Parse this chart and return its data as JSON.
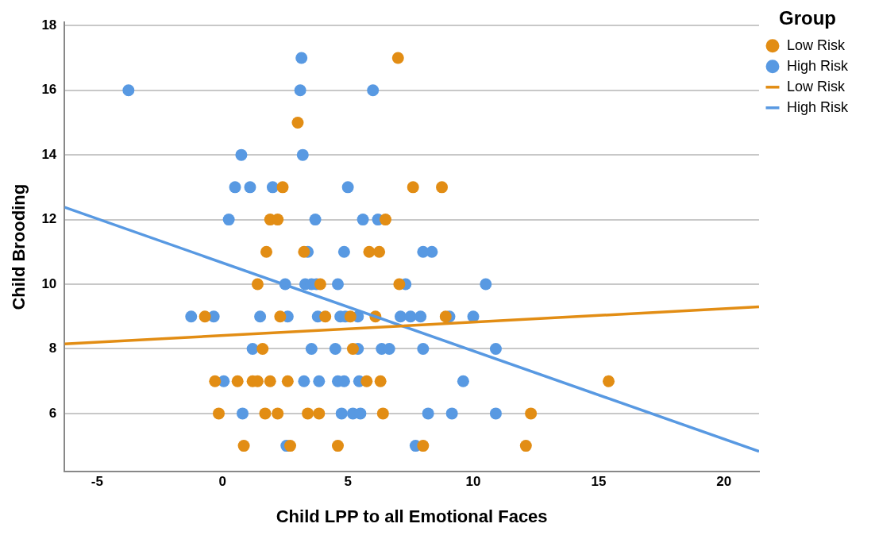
{
  "chart_data": {
    "type": "scatter",
    "xlabel": "Child LPP to all Emotional Faces",
    "ylabel": "Child Brooding",
    "legend_title": "Group",
    "legend": "top right",
    "grid": "y",
    "marker": "circle",
    "xlim": [
      -6.3,
      21.4
    ],
    "ylim": [
      4.2,
      18.1
    ],
    "xticks": [
      -5,
      0,
      5,
      10,
      15,
      20
    ],
    "yticks": [
      6,
      8,
      10,
      12,
      14,
      16,
      18
    ],
    "series": [
      {
        "name": "Low Risk",
        "color": "#e28d14",
        "x": [
          7.0,
          3.0,
          2.4,
          7.6,
          8.75,
          1.9,
          2.2,
          6.5,
          1.75,
          3.25,
          5.85,
          6.25,
          1.4,
          3.9,
          7.05,
          -0.7,
          2.3,
          4.1,
          5.1,
          6.1,
          8.9,
          1.6,
          5.2,
          -0.3,
          0.6,
          1.2,
          1.4,
          1.9,
          2.6,
          5.75,
          6.3,
          15.4,
          -0.15,
          1.7,
          2.2,
          3.4,
          3.85,
          6.4,
          12.3,
          0.85,
          2.7,
          4.6,
          8.0,
          12.1
        ],
        "values": [
          17,
          15,
          13,
          13,
          13,
          12,
          12,
          12,
          11,
          11,
          11,
          11,
          10,
          10,
          10,
          9,
          9,
          9,
          9,
          9,
          9,
          8,
          8,
          7,
          7,
          7,
          7,
          7,
          7,
          7,
          7,
          7,
          6,
          6,
          6,
          6,
          6,
          6,
          6,
          5,
          5,
          5,
          5,
          5
        ]
      },
      {
        "name": "High Risk",
        "color": "#5899e2",
        "x": [
          3.15,
          -3.75,
          3.1,
          6.0,
          0.75,
          3.2,
          0.5,
          1.1,
          2.0,
          5.0,
          0.25,
          3.7,
          5.6,
          6.2,
          3.4,
          4.85,
          8.0,
          8.35,
          2.5,
          3.3,
          3.55,
          3.75,
          4.6,
          7.3,
          10.5,
          -1.25,
          -0.35,
          1.5,
          2.6,
          3.8,
          4.7,
          4.9,
          5.4,
          7.1,
          7.5,
          7.9,
          9.05,
          10.0,
          1.2,
          3.55,
          4.5,
          5.4,
          6.35,
          6.65,
          8.0,
          10.9,
          0.05,
          3.25,
          3.85,
          4.6,
          4.85,
          5.45,
          9.6,
          0.8,
          4.75,
          5.2,
          5.5,
          8.2,
          9.15,
          10.9,
          2.55,
          7.7
        ],
        "values": [
          17,
          16,
          16,
          16,
          14,
          14,
          13,
          13,
          13,
          13,
          12,
          12,
          12,
          12,
          11,
          11,
          11,
          11,
          10,
          10,
          10,
          10,
          10,
          10,
          10,
          9,
          9,
          9,
          9,
          9,
          9,
          9,
          9,
          9,
          9,
          9,
          9,
          9,
          8,
          8,
          8,
          8,
          8,
          8,
          8,
          8,
          7,
          7,
          7,
          7,
          7,
          7,
          7,
          6,
          6,
          6,
          6,
          6,
          6,
          6,
          5,
          5
        ]
      },
      {
        "name": "Low Risk",
        "type": "line",
        "marker": "none",
        "color": "#e28d14",
        "x": [
          -6.3,
          21.4
        ],
        "values": [
          8.15,
          9.3
        ]
      },
      {
        "name": "High Risk",
        "type": "line",
        "marker": "none",
        "color": "#5899e2",
        "x": [
          -6.3,
          21.4
        ],
        "values": [
          12.38,
          4.83
        ]
      }
    ]
  }
}
